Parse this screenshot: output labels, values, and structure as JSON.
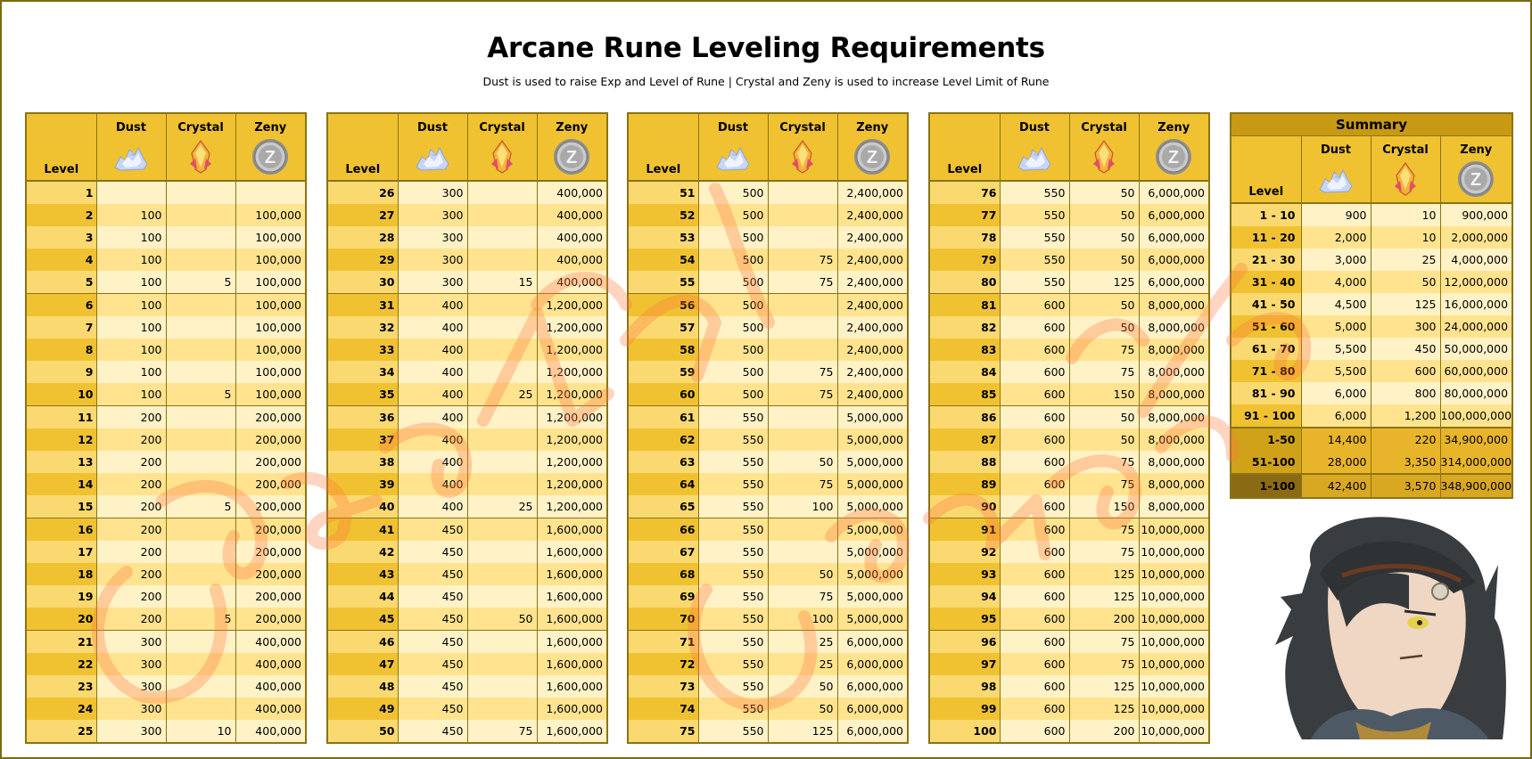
{
  "title": "Arcane Rune Leveling Requirements",
  "subtitle": "Dust is used to raise Exp and Level of Rune | Crystal and Zeny is used to increase Level Limit of Rune",
  "headers": {
    "level": "Level",
    "dust": "Dust",
    "crystal": "Crystal",
    "zeny": "Zeny"
  },
  "icons": {
    "dust": "dust-icon",
    "crystal": "crystal-icon",
    "zeny": "zeny-coin-icon"
  },
  "colors": {
    "header": "#f0c232",
    "row_light": "#fff2c6",
    "row_dark": "#ffe38f",
    "border": "#8a7414"
  },
  "tables": [
    {
      "rows": [
        [
          "1",
          "",
          "",
          ""
        ],
        [
          "2",
          "100",
          "",
          "100,000"
        ],
        [
          "3",
          "100",
          "",
          "100,000"
        ],
        [
          "4",
          "100",
          "",
          "100,000"
        ],
        [
          "5",
          "100",
          "5",
          "100,000"
        ],
        [
          "6",
          "100",
          "",
          "100,000"
        ],
        [
          "7",
          "100",
          "",
          "100,000"
        ],
        [
          "8",
          "100",
          "",
          "100,000"
        ],
        [
          "9",
          "100",
          "",
          "100,000"
        ],
        [
          "10",
          "100",
          "5",
          "100,000"
        ],
        [
          "11",
          "200",
          "",
          "200,000"
        ],
        [
          "12",
          "200",
          "",
          "200,000"
        ],
        [
          "13",
          "200",
          "",
          "200,000"
        ],
        [
          "14",
          "200",
          "",
          "200,000"
        ],
        [
          "15",
          "200",
          "5",
          "200,000"
        ],
        [
          "16",
          "200",
          "",
          "200,000"
        ],
        [
          "17",
          "200",
          "",
          "200,000"
        ],
        [
          "18",
          "200",
          "",
          "200,000"
        ],
        [
          "19",
          "200",
          "",
          "200,000"
        ],
        [
          "20",
          "200",
          "5",
          "200,000"
        ],
        [
          "21",
          "300",
          "",
          "400,000"
        ],
        [
          "22",
          "300",
          "",
          "400,000"
        ],
        [
          "23",
          "300",
          "",
          "400,000"
        ],
        [
          "24",
          "300",
          "",
          "400,000"
        ],
        [
          "25",
          "300",
          "10",
          "400,000"
        ]
      ]
    },
    {
      "rows": [
        [
          "26",
          "300",
          "",
          "400,000"
        ],
        [
          "27",
          "300",
          "",
          "400,000"
        ],
        [
          "28",
          "300",
          "",
          "400,000"
        ],
        [
          "29",
          "300",
          "",
          "400,000"
        ],
        [
          "30",
          "300",
          "15",
          "400,000"
        ],
        [
          "31",
          "400",
          "",
          "1,200,000"
        ],
        [
          "32",
          "400",
          "",
          "1,200,000"
        ],
        [
          "33",
          "400",
          "",
          "1,200,000"
        ],
        [
          "34",
          "400",
          "",
          "1,200,000"
        ],
        [
          "35",
          "400",
          "25",
          "1,200,000"
        ],
        [
          "36",
          "400",
          "",
          "1,200,000"
        ],
        [
          "37",
          "400",
          "",
          "1,200,000"
        ],
        [
          "38",
          "400",
          "",
          "1,200,000"
        ],
        [
          "39",
          "400",
          "",
          "1,200,000"
        ],
        [
          "40",
          "400",
          "25",
          "1,200,000"
        ],
        [
          "41",
          "450",
          "",
          "1,600,000"
        ],
        [
          "42",
          "450",
          "",
          "1,600,000"
        ],
        [
          "43",
          "450",
          "",
          "1,600,000"
        ],
        [
          "44",
          "450",
          "",
          "1,600,000"
        ],
        [
          "45",
          "450",
          "50",
          "1,600,000"
        ],
        [
          "46",
          "450",
          "",
          "1,600,000"
        ],
        [
          "47",
          "450",
          "",
          "1,600,000"
        ],
        [
          "48",
          "450",
          "",
          "1,600,000"
        ],
        [
          "49",
          "450",
          "",
          "1,600,000"
        ],
        [
          "50",
          "450",
          "75",
          "1,600,000"
        ]
      ]
    },
    {
      "rows": [
        [
          "51",
          "500",
          "",
          "2,400,000"
        ],
        [
          "52",
          "500",
          "",
          "2,400,000"
        ],
        [
          "53",
          "500",
          "",
          "2,400,000"
        ],
        [
          "54",
          "500",
          "75",
          "2,400,000"
        ],
        [
          "55",
          "500",
          "75",
          "2,400,000"
        ],
        [
          "56",
          "500",
          "",
          "2,400,000"
        ],
        [
          "57",
          "500",
          "",
          "2,400,000"
        ],
        [
          "58",
          "500",
          "",
          "2,400,000"
        ],
        [
          "59",
          "500",
          "75",
          "2,400,000"
        ],
        [
          "60",
          "500",
          "75",
          "2,400,000"
        ],
        [
          "61",
          "550",
          "",
          "5,000,000"
        ],
        [
          "62",
          "550",
          "",
          "5,000,000"
        ],
        [
          "63",
          "550",
          "50",
          "5,000,000"
        ],
        [
          "64",
          "550",
          "75",
          "5,000,000"
        ],
        [
          "65",
          "550",
          "100",
          "5,000,000"
        ],
        [
          "66",
          "550",
          "",
          "5,000,000"
        ],
        [
          "67",
          "550",
          "",
          "5,000,000"
        ],
        [
          "68",
          "550",
          "50",
          "5,000,000"
        ],
        [
          "69",
          "550",
          "75",
          "5,000,000"
        ],
        [
          "70",
          "550",
          "100",
          "5,000,000"
        ],
        [
          "71",
          "550",
          "25",
          "6,000,000"
        ],
        [
          "72",
          "550",
          "25",
          "6,000,000"
        ],
        [
          "73",
          "550",
          "50",
          "6,000,000"
        ],
        [
          "74",
          "550",
          "50",
          "6,000,000"
        ],
        [
          "75",
          "550",
          "125",
          "6,000,000"
        ]
      ]
    },
    {
      "rows": [
        [
          "76",
          "550",
          "50",
          "6,000,000"
        ],
        [
          "77",
          "550",
          "50",
          "6,000,000"
        ],
        [
          "78",
          "550",
          "50",
          "6,000,000"
        ],
        [
          "79",
          "550",
          "50",
          "6,000,000"
        ],
        [
          "80",
          "550",
          "125",
          "6,000,000"
        ],
        [
          "81",
          "600",
          "50",
          "8,000,000"
        ],
        [
          "82",
          "600",
          "50",
          "8,000,000"
        ],
        [
          "83",
          "600",
          "75",
          "8,000,000"
        ],
        [
          "84",
          "600",
          "75",
          "8,000,000"
        ],
        [
          "85",
          "600",
          "150",
          "8,000,000"
        ],
        [
          "86",
          "600",
          "50",
          "8,000,000"
        ],
        [
          "87",
          "600",
          "50",
          "8,000,000"
        ],
        [
          "88",
          "600",
          "75",
          "8,000,000"
        ],
        [
          "89",
          "600",
          "75",
          "8,000,000"
        ],
        [
          "90",
          "600",
          "150",
          "8,000,000"
        ],
        [
          "91",
          "600",
          "75",
          "10,000,000"
        ],
        [
          "92",
          "600",
          "75",
          "10,000,000"
        ],
        [
          "93",
          "600",
          "125",
          "10,000,000"
        ],
        [
          "94",
          "600",
          "125",
          "10,000,000"
        ],
        [
          "95",
          "600",
          "200",
          "10,000,000"
        ],
        [
          "96",
          "600",
          "75",
          "10,000,000"
        ],
        [
          "97",
          "600",
          "75",
          "10,000,000"
        ],
        [
          "98",
          "600",
          "125",
          "10,000,000"
        ],
        [
          "99",
          "600",
          "125",
          "10,000,000"
        ],
        [
          "100",
          "600",
          "200",
          "10,000,000"
        ]
      ]
    }
  ],
  "summary": {
    "title": "Summary",
    "ranges": [
      [
        "1 - 10",
        "900",
        "10",
        "900,000"
      ],
      [
        "11 - 20",
        "2,000",
        "10",
        "2,000,000"
      ],
      [
        "21 - 30",
        "3,000",
        "25",
        "4,000,000"
      ],
      [
        "31 - 40",
        "4,000",
        "50",
        "12,000,000"
      ],
      [
        "41 - 50",
        "4,500",
        "125",
        "16,000,000"
      ],
      [
        "51 - 60",
        "5,000",
        "300",
        "24,000,000"
      ],
      [
        "61 - 70",
        "5,500",
        "450",
        "50,000,000"
      ],
      [
        "71 - 80",
        "5,500",
        "600",
        "60,000,000"
      ],
      [
        "81 - 90",
        "6,000",
        "800",
        "80,000,000"
      ],
      [
        "91 - 100",
        "6,000",
        "1,200",
        "100,000,000"
      ]
    ],
    "halves": [
      [
        "1-50",
        "14,400",
        "220",
        "34,900,000"
      ],
      [
        "51-100",
        "28,000",
        "3,350",
        "314,000,000"
      ]
    ],
    "total": [
      "1-100",
      "42,400",
      "3,570",
      "348,900,000"
    ]
  }
}
